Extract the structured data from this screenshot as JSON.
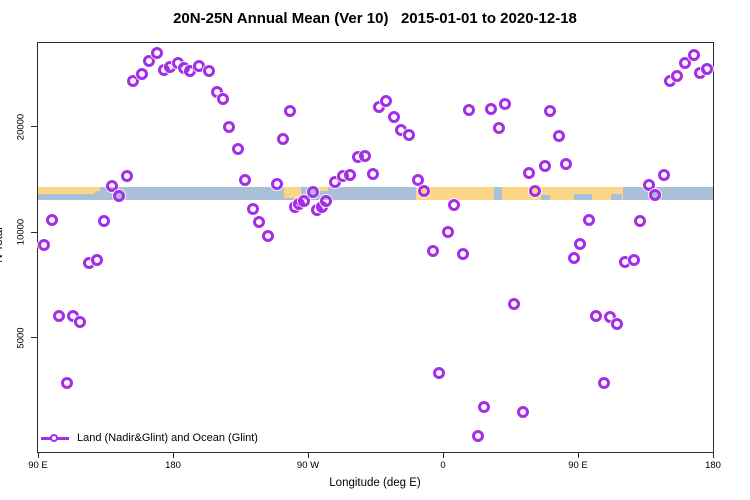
{
  "title": "20N-25N Annual Mean (Ver 10)   2015-01-01 to 2020-12-18",
  "axes": {
    "x_label": "Longitude (deg E)",
    "y_label": "N Total"
  },
  "legend": {
    "label": "Land (Nadir&Glint) and Ocean (Glint)"
  },
  "colors": {
    "marker": "#A62DE6",
    "land": "#FBD687",
    "ocean": "#AABFD8",
    "axis": "#2B2B2B"
  },
  "chart_data": {
    "type": "scatter",
    "title": "20N-25N Annual Mean (Ver 10) 2015-01-01 to 2020-12-18",
    "xlabel": "Longitude (deg E)",
    "ylabel": "N Total",
    "yscale": "log",
    "xlim": [
      90,
      540
    ],
    "ylim": [
      2364,
      34730
    ],
    "x_axis_note": "axis starts at 90E and runs eastward 450 degrees (wraps past 180/90W/0 back to 180)",
    "x_ticks": [
      {
        "pos": 90,
        "label": "90 E"
      },
      {
        "pos": 180,
        "label": "180"
      },
      {
        "pos": 270,
        "label": "90 W"
      },
      {
        "pos": 360,
        "label": "0"
      },
      {
        "pos": 450,
        "label": "90 E"
      },
      {
        "pos": 540,
        "label": "180"
      }
    ],
    "y_ticks": [
      {
        "value": 5000,
        "label": "5000"
      },
      {
        "value": 10000,
        "label": "10000"
      },
      {
        "value": 20000,
        "label": "20000"
      }
    ],
    "grid": false,
    "legend_position": "bottom-left-inside",
    "series": [
      {
        "name": "Land (Nadir&Glint) and Ocean (Glint)",
        "marker": "open-circle",
        "points": [
          [
            153,
            27100
          ],
          [
            159,
            28400
          ],
          [
            164,
            30900
          ],
          [
            169,
            32600
          ],
          [
            174,
            29100
          ],
          [
            178,
            29700
          ],
          [
            183,
            30500
          ],
          [
            187,
            29500
          ],
          [
            191,
            28900
          ],
          [
            197,
            29900
          ],
          [
            204,
            28900
          ],
          [
            209,
            25200
          ],
          [
            213,
            24100
          ],
          [
            217,
            20000
          ],
          [
            223,
            17300
          ],
          [
            228,
            14100
          ],
          [
            233,
            11640
          ],
          [
            237,
            10690
          ],
          [
            243,
            9800
          ],
          [
            249,
            13730
          ],
          [
            253,
            18500
          ],
          [
            258,
            22200
          ],
          [
            261,
            11800
          ],
          [
            264,
            12030
          ],
          [
            267,
            12270
          ],
          [
            273,
            13030
          ],
          [
            276,
            11560
          ],
          [
            279,
            11800
          ],
          [
            282,
            12270
          ],
          [
            288,
            13900
          ],
          [
            293,
            14480
          ],
          [
            298,
            14560
          ],
          [
            303,
            16400
          ],
          [
            308,
            16520
          ],
          [
            313,
            14660
          ],
          [
            317,
            22820
          ],
          [
            322,
            23750
          ],
          [
            327,
            21370
          ],
          [
            332,
            19600
          ],
          [
            337,
            18970
          ],
          [
            343,
            14090
          ],
          [
            347,
            13110
          ],
          [
            363,
            10000
          ],
          [
            367,
            11950
          ],
          [
            377,
            22380
          ],
          [
            392,
            22520
          ],
          [
            397,
            19870
          ],
          [
            401,
            23280
          ],
          [
            417,
            14760
          ],
          [
            421,
            13110
          ],
          [
            428,
            15460
          ],
          [
            431,
            22200
          ],
          [
            437,
            18840
          ],
          [
            442,
            15670
          ],
          [
            457,
            10890
          ],
          [
            491,
            10760
          ],
          [
            497,
            13640
          ],
          [
            501,
            12770
          ],
          [
            507,
            14560
          ],
          [
            511,
            27100
          ],
          [
            516,
            28000
          ],
          [
            521,
            30460
          ],
          [
            527,
            32050
          ],
          [
            531,
            28520
          ],
          [
            536,
            29280
          ],
          [
            94,
            9240
          ],
          [
            99,
            10890
          ],
          [
            104,
            5780
          ],
          [
            109,
            3715
          ],
          [
            113,
            5780
          ],
          [
            118,
            5560
          ],
          [
            124,
            8200
          ],
          [
            129,
            8370
          ],
          [
            134,
            10760
          ],
          [
            139,
            13550
          ],
          [
            144,
            12680
          ],
          [
            149,
            14480
          ],
          [
            353,
            8830
          ],
          [
            357,
            3970
          ],
          [
            373,
            8710
          ],
          [
            383,
            2620
          ],
          [
            387,
            3170
          ],
          [
            407,
            6270
          ],
          [
            413,
            3070
          ],
          [
            447,
            8470
          ],
          [
            451,
            9290
          ],
          [
            462,
            5780
          ],
          [
            467,
            3715
          ],
          [
            471,
            5740
          ],
          [
            476,
            5480
          ],
          [
            481,
            8260
          ],
          [
            487,
            8370
          ]
        ]
      }
    ],
    "map_band": {
      "description": "20N-25N world land/ocean strip drawn across the plot",
      "value_range": [
        12380,
        13480
      ],
      "land_segments": [
        {
          "x0": 90,
          "x1": 128,
          "y0": 0,
          "y1": 0.55
        },
        {
          "x0": 128,
          "x1": 131,
          "y0": 0,
          "y1": 0.3
        },
        {
          "x0": 254,
          "x1": 265,
          "y0": 0,
          "y1": 0.85
        },
        {
          "x0": 275,
          "x1": 283,
          "y0": 0,
          "y1": 0.3
        },
        {
          "x0": 342,
          "x1": 394,
          "y0": 0,
          "y1": 1
        },
        {
          "x0": 399,
          "x1": 480,
          "y0": 0,
          "y1": 1
        }
      ],
      "ocean_notches": [
        {
          "x0": 425,
          "x1": 431,
          "y0": 0.6,
          "y1": 1
        },
        {
          "x0": 447,
          "x1": 459,
          "y0": 0.55,
          "y1": 1
        },
        {
          "x0": 472,
          "x1": 479,
          "y0": 0.5,
          "y1": 1
        }
      ]
    }
  }
}
